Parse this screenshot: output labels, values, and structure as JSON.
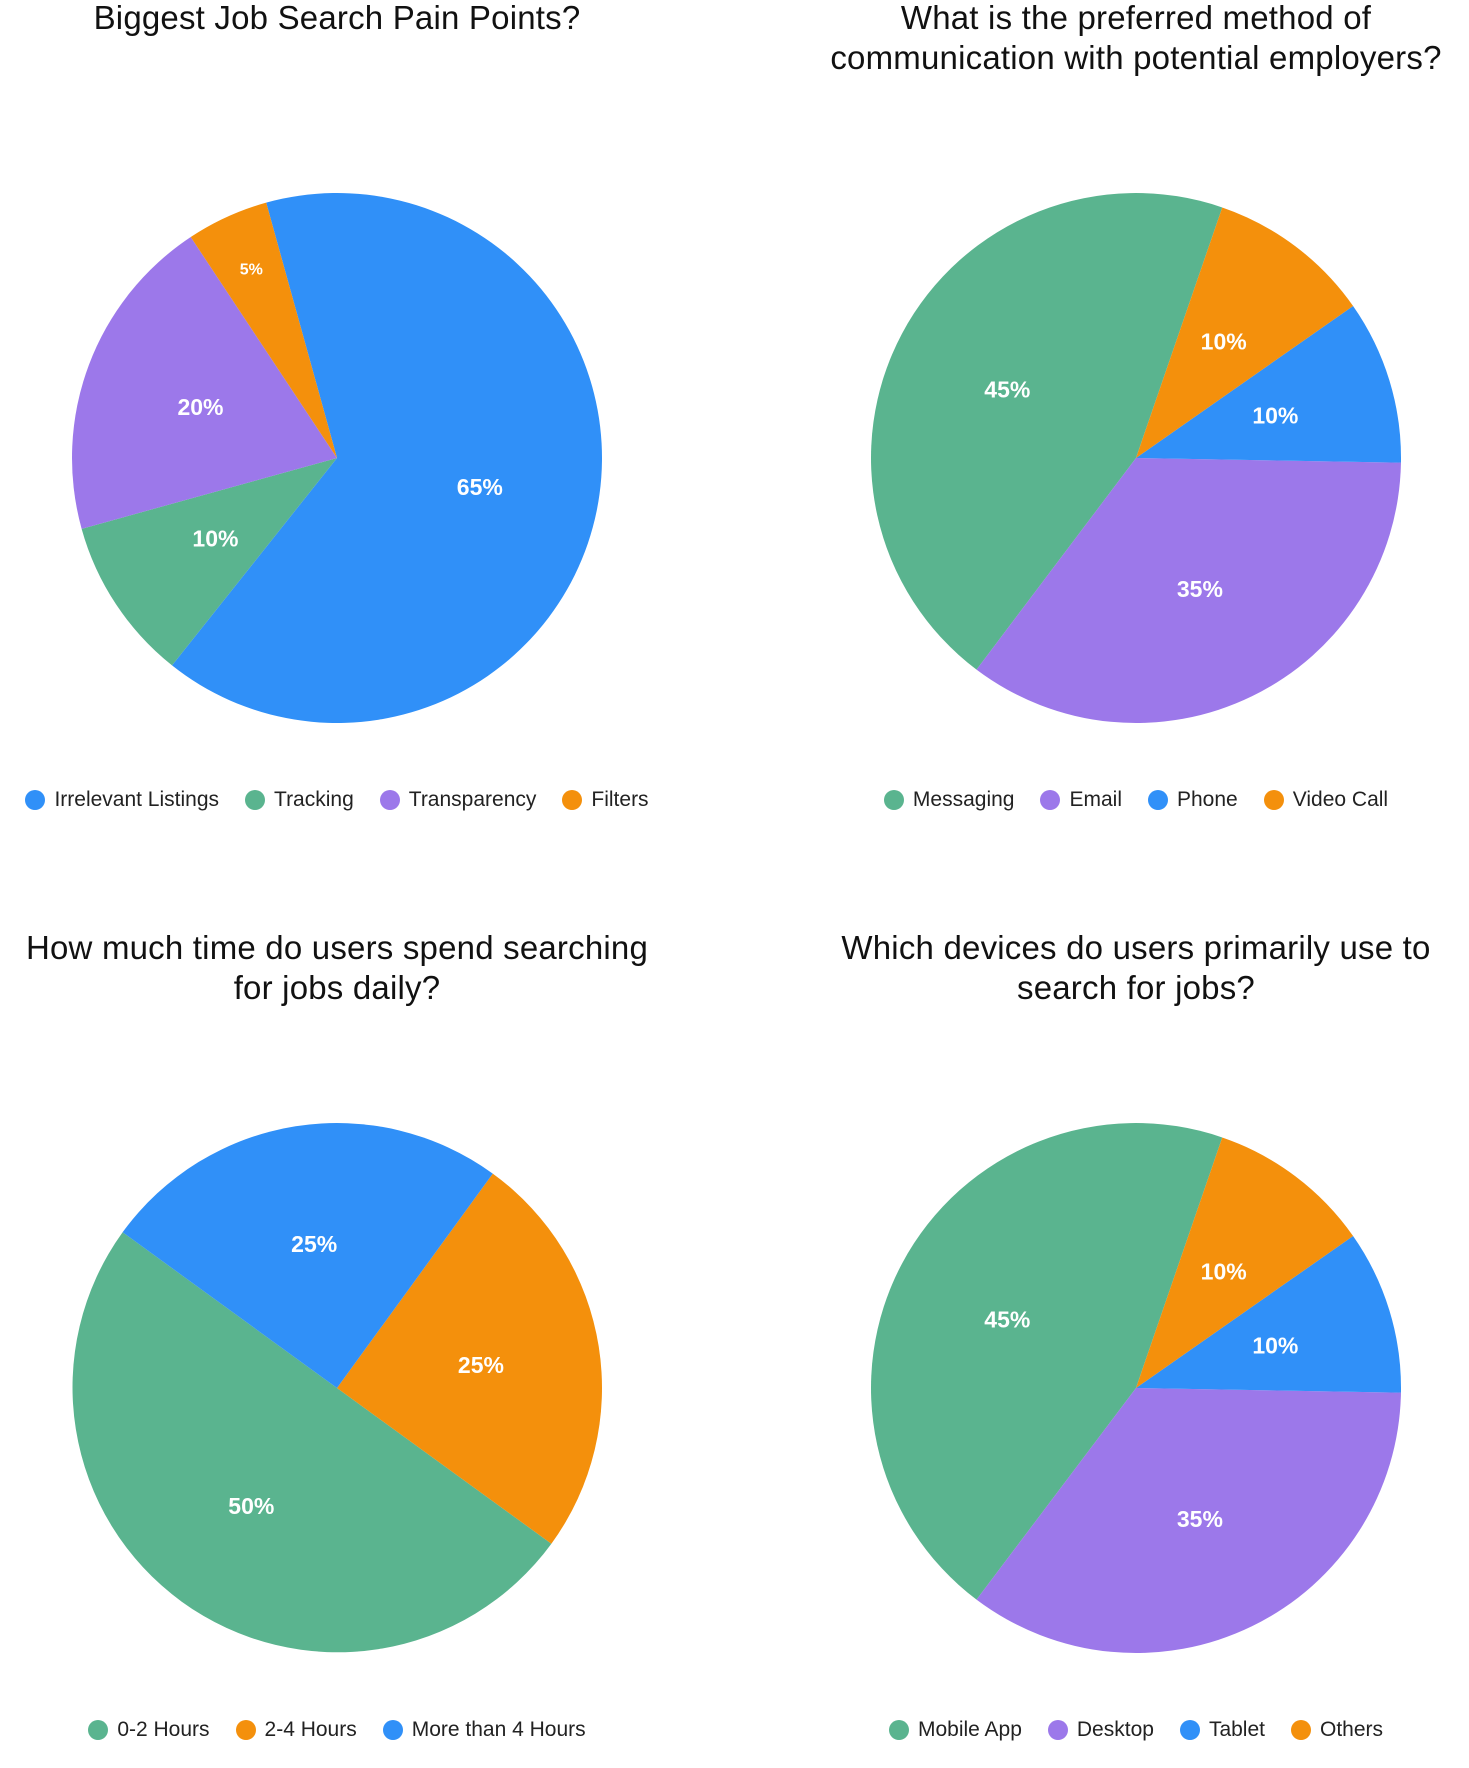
{
  "colors": {
    "blue": "#3090f8",
    "green": "#5ab48f",
    "purple": "#9c78ea",
    "orange": "#f4900c"
  },
  "chart_data": [
    {
      "type": "pie",
      "title": "Biggest Job Search Pain Points?",
      "slices": [
        {
          "label": "Irrelevant Listings",
          "value": 65,
          "display": "65%",
          "color": "#3090f8"
        },
        {
          "label": "Tracking",
          "value": 10,
          "display": "10%",
          "color": "#5ab48f"
        },
        {
          "label": "Transparency",
          "value": 20,
          "display": "20%",
          "color": "#9c78ea"
        },
        {
          "label": "Filters",
          "value": 5,
          "display": "5%",
          "color": "#f4900c"
        }
      ],
      "legend": [
        "Irrelevant Listings",
        "Tracking",
        "Transparency",
        "Filters"
      ],
      "legend_position": "bottom"
    },
    {
      "type": "pie",
      "title": "What is the preferred method of communication with potential employers?",
      "slices": [
        {
          "label": "Messaging",
          "value": 45,
          "display": "45%",
          "color": "#5ab48f"
        },
        {
          "label": "Email",
          "value": 35,
          "display": "35%",
          "color": "#9c78ea"
        },
        {
          "label": "Phone",
          "value": 10,
          "display": "10%",
          "color": "#3090f8"
        },
        {
          "label": "Video Call",
          "value": 10,
          "display": "10%",
          "color": "#f4900c"
        }
      ],
      "legend": [
        "Messaging",
        "Email",
        "Phone",
        "Video Call"
      ],
      "legend_position": "bottom"
    },
    {
      "type": "pie",
      "title": "How much time do users spend searching for jobs daily?",
      "slices": [
        {
          "label": "0-2 Hours",
          "value": 50,
          "display": "50%",
          "color": "#5ab48f"
        },
        {
          "label": "2-4 Hours",
          "value": 25,
          "display": "25%",
          "color": "#f4900c"
        },
        {
          "label": "More than 4 Hours",
          "value": 25,
          "display": "25%",
          "color": "#3090f8"
        }
      ],
      "legend": [
        "0-2 Hours",
        "2-4 Hours",
        "More than 4 Hours"
      ],
      "legend_position": "bottom"
    },
    {
      "type": "pie",
      "title": "Which devices do users primarily use to search for jobs?",
      "slices": [
        {
          "label": "Mobile App",
          "value": 45,
          "display": "45%",
          "color": "#5ab48f"
        },
        {
          "label": "Desktop",
          "value": 35,
          "display": "35%",
          "color": "#9c78ea"
        },
        {
          "label": "Tablet",
          "value": 10,
          "display": "10%",
          "color": "#3090f8"
        },
        {
          "label": "Others",
          "value": 10,
          "display": "10%",
          "color": "#f4900c"
        }
      ],
      "legend": [
        "Mobile App",
        "Desktop",
        "Tablet",
        "Others"
      ],
      "legend_position": "bottom"
    }
  ]
}
